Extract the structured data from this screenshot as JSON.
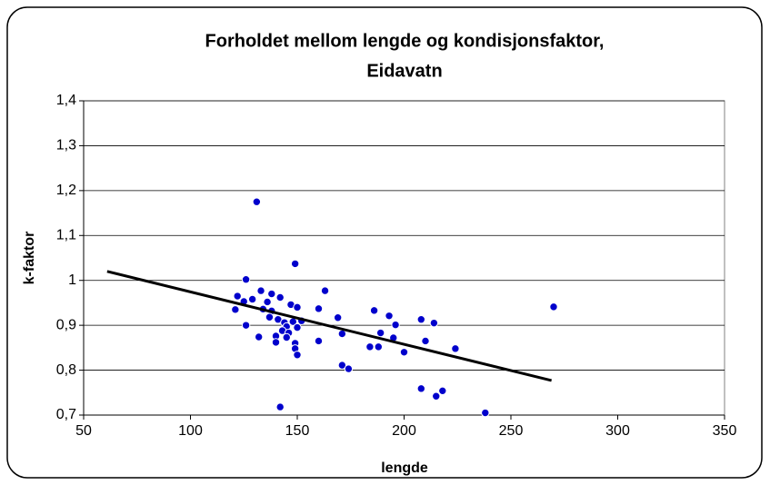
{
  "chart_data": {
    "type": "scatter",
    "title": [
      "Forholdet mellom lengde og kondisjonsfaktor,",
      "Eidavatn"
    ],
    "x_label": "lengde",
    "y_label": "k-faktor",
    "xlim": [
      50,
      350
    ],
    "xticks": [
      50,
      100,
      150,
      200,
      250,
      300,
      350
    ],
    "ylim": [
      0.7,
      1.4
    ],
    "yticks": [
      {
        "value": 0.7,
        "label": "0,7"
      },
      {
        "value": 0.8,
        "label": "0,8"
      },
      {
        "value": 0.9,
        "label": "0,9"
      },
      1,
      {
        "value": 1.1,
        "label": "1,1"
      },
      {
        "value": 1.2,
        "label": "1,2"
      },
      {
        "value": 1.3,
        "label": "1,3"
      },
      {
        "value": 1.4,
        "label": "1,4"
      }
    ],
    "grid": true,
    "series": [
      {
        "color": "#0000cc",
        "x": [
          131,
          149,
          126,
          163,
          122,
          133,
          138,
          142,
          129,
          125,
          136,
          147,
          150,
          121,
          134,
          138,
          160,
          186,
          193,
          137,
          141,
          169,
          144,
          148,
          152,
          145,
          150,
          126,
          196,
          208,
          214,
          143,
          146,
          171,
          189,
          140,
          145,
          132,
          195,
          160,
          210,
          140,
          149,
          184,
          188,
          149,
          224,
          200,
          150,
          171,
          174,
          208,
          218,
          215,
          142,
          238,
          270
        ],
        "values": [
          1.175,
          1.037,
          1.002,
          0.977,
          0.965,
          0.977,
          0.97,
          0.962,
          0.958,
          0.953,
          0.952,
          0.946,
          0.94,
          0.935,
          0.936,
          0.932,
          0.937,
          0.933,
          0.921,
          0.918,
          0.913,
          0.917,
          0.906,
          0.908,
          0.91,
          0.897,
          0.895,
          0.9,
          0.901,
          0.913,
          0.905,
          0.888,
          0.883,
          0.881,
          0.883,
          0.876,
          0.873,
          0.874,
          0.872,
          0.865,
          0.865,
          0.862,
          0.86,
          0.852,
          0.852,
          0.848,
          0.848,
          0.84,
          0.834,
          0.811,
          0.803,
          0.759,
          0.754,
          0.742,
          0.718,
          0.705,
          0.941
        ]
      }
    ],
    "trendline": {
      "color": "#000000",
      "x": [
        61,
        269
      ],
      "values": [
        1.02,
        0.777
      ]
    }
  }
}
